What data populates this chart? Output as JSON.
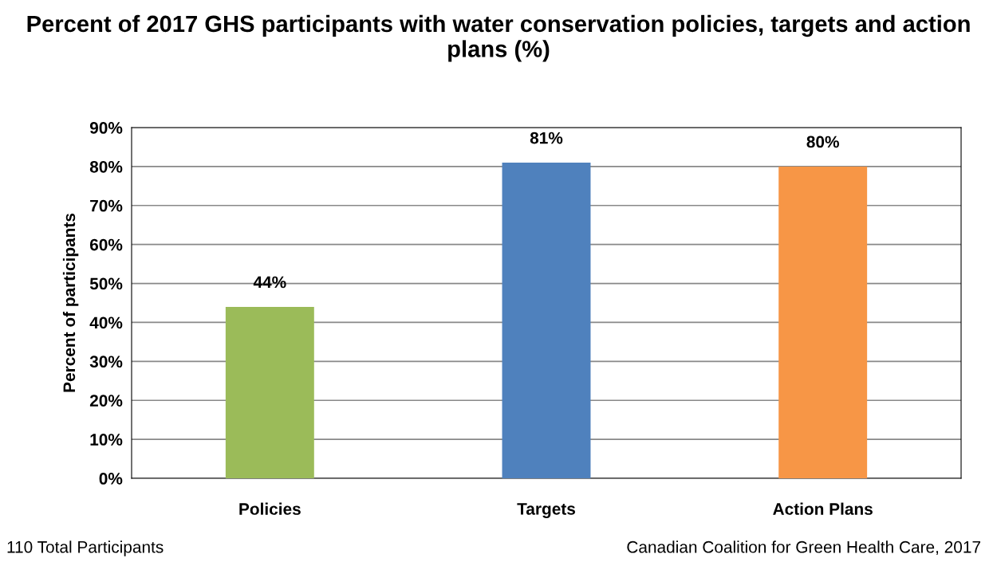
{
  "chart_data": {
    "type": "bar",
    "title": "Percent of 2017 GHS participants with water conservation policies, targets and action plans (%)",
    "ylabel": "Percent of participants",
    "categories": [
      "Policies",
      "Targets",
      "Action Plans"
    ],
    "values": [
      44,
      81,
      80
    ],
    "colors": [
      "#9bbb59",
      "#4f81bd",
      "#f79646"
    ],
    "value_labels": [
      "44%",
      "81%",
      "80%"
    ],
    "ylim": [
      0,
      90
    ],
    "yticks": [
      {
        "value": 0,
        "label": "0%"
      },
      {
        "value": 10,
        "label": "10%"
      },
      {
        "value": 20,
        "label": "20%"
      },
      {
        "value": 30,
        "label": "30%"
      },
      {
        "value": 40,
        "label": "40%"
      },
      {
        "value": 50,
        "label": "50%"
      },
      {
        "value": 60,
        "label": "60%"
      },
      {
        "value": 70,
        "label": "70%"
      },
      {
        "value": 80,
        "label": "80%"
      },
      {
        "value": 90,
        "label": "90%"
      }
    ],
    "grid": "y",
    "legend": false,
    "annotations": [
      "110 Total Participants",
      "Canadian Coalition for Green Health Care, 2017"
    ]
  }
}
